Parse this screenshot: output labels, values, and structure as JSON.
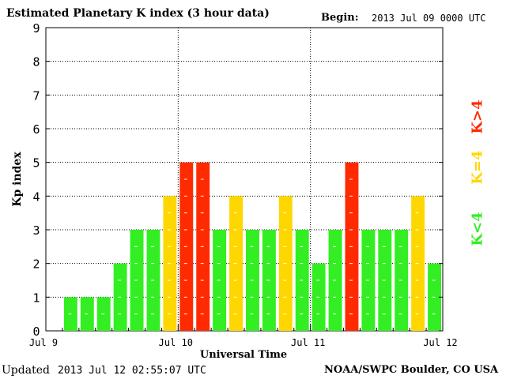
{
  "header": {
    "title": "Estimated Planetary K index (3 hour data)",
    "begin_label": "Begin:",
    "begin_value": "2013 Jul 09 0000 UTC"
  },
  "footer": {
    "updated_label": "Updated",
    "updated_value": "2013 Jul 12 02:55:07 UTC",
    "credit": "NOAA/SWPC Boulder, CO USA"
  },
  "legend": [
    {
      "label": "K<4",
      "color": "#33ee22"
    },
    {
      "label": "K=4",
      "color": "#ffd700"
    },
    {
      "label": "K>4",
      "color": "#ff2a00"
    }
  ],
  "chart_data": {
    "type": "bar",
    "title": "Estimated Planetary K index (3 hour data)",
    "xlabel": "Universal Time",
    "ylabel": "Kp index",
    "ylim": [
      0,
      9
    ],
    "yticks": [
      0,
      1,
      2,
      3,
      4,
      5,
      6,
      7,
      8,
      9
    ],
    "xticks": [
      "Jul 9",
      "Jul 10",
      "Jul 11",
      "Jul 12"
    ],
    "grid": true,
    "interval_hours": 3,
    "values": [
      0,
      1,
      1,
      1,
      2,
      3,
      3,
      4,
      5,
      5,
      3,
      4,
      3,
      3,
      4,
      3,
      2,
      3,
      5,
      3,
      3,
      3,
      4,
      2
    ],
    "colors": {
      "low": "#33ee22",
      "equal": "#ffd700",
      "high": "#ff2a00"
    }
  }
}
